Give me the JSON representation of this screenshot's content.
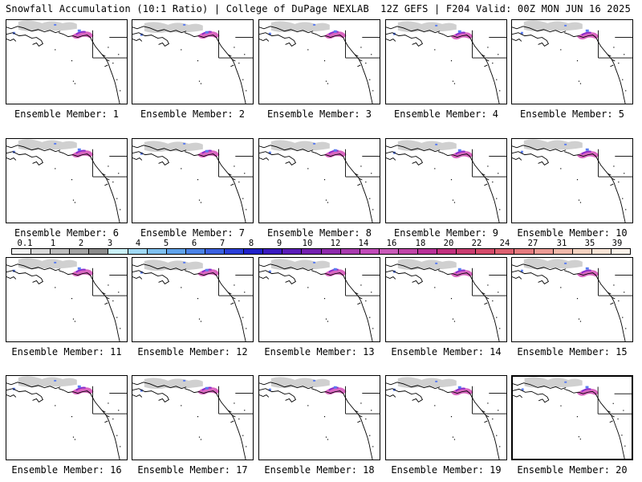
{
  "header": {
    "title_left": "Snowfall Accumulation (10:1 Ratio) | College of DuPage NEXLAB",
    "title_right": "12Z GEFS | F204 Valid: 00Z MON JUN 16 2025"
  },
  "map": {
    "region": "North Pacific / Alaska / Western Canada",
    "background_color": "#ffffff",
    "coast_color": "#000000"
  },
  "panels": [
    {
      "caption": "Ensemble Member: 1"
    },
    {
      "caption": "Ensemble Member: 2"
    },
    {
      "caption": "Ensemble Member: 3"
    },
    {
      "caption": "Ensemble Member: 4"
    },
    {
      "caption": "Ensemble Member: 5"
    },
    {
      "caption": "Ensemble Member: 6"
    },
    {
      "caption": "Ensemble Member: 7"
    },
    {
      "caption": "Ensemble Member: 8"
    },
    {
      "caption": "Ensemble Member: 9"
    },
    {
      "caption": "Ensemble Member: 10"
    },
    {
      "caption": "Ensemble Member: 11"
    },
    {
      "caption": "Ensemble Member: 12"
    },
    {
      "caption": "Ensemble Member: 13"
    },
    {
      "caption": "Ensemble Member: 14"
    },
    {
      "caption": "Ensemble Member: 15"
    },
    {
      "caption": "Ensemble Member: 16"
    },
    {
      "caption": "Ensemble Member: 17"
    },
    {
      "caption": "Ensemble Member: 18"
    },
    {
      "caption": "Ensemble Member: 19"
    },
    {
      "caption": "Ensemble Member: 20"
    }
  ],
  "colorbar": {
    "labels": [
      "0.1",
      "1",
      "2",
      "3",
      "4",
      "5",
      "6",
      "7",
      "8",
      "9",
      "10",
      "12",
      "14",
      "16",
      "18",
      "20",
      "22",
      "24",
      "27",
      "31",
      "35",
      "39"
    ],
    "colors": [
      "#f2f2f2",
      "#d9d9d9",
      "#bdbdbd",
      "#a3a3a3",
      "#8a8a8a",
      "#c9f0f7",
      "#9fd9f5",
      "#7ec0f0",
      "#5fa2ea",
      "#4a82e6",
      "#3a60e0",
      "#2a3ed8",
      "#1f20c8",
      "#3a1ac0",
      "#5a1cb8",
      "#7420b0",
      "#8e2aac",
      "#a83aae",
      "#c04ab8",
      "#c85ab8",
      "#c044a8",
      "#b83098",
      "#c0307e",
      "#c83c70",
      "#d44a6a",
      "#dc6070",
      "#e47a7e",
      "#eb9a94",
      "#f0b8aa",
      "#f4d2c0",
      "#f8e4d6",
      "#fcf2ea"
    ]
  },
  "legend": {
    "snow_light": "#c8c8c8",
    "snow_blue": "#5a7cf0",
    "snow_purple": "#8a2acc",
    "snow_magenta": "#d040b0"
  }
}
